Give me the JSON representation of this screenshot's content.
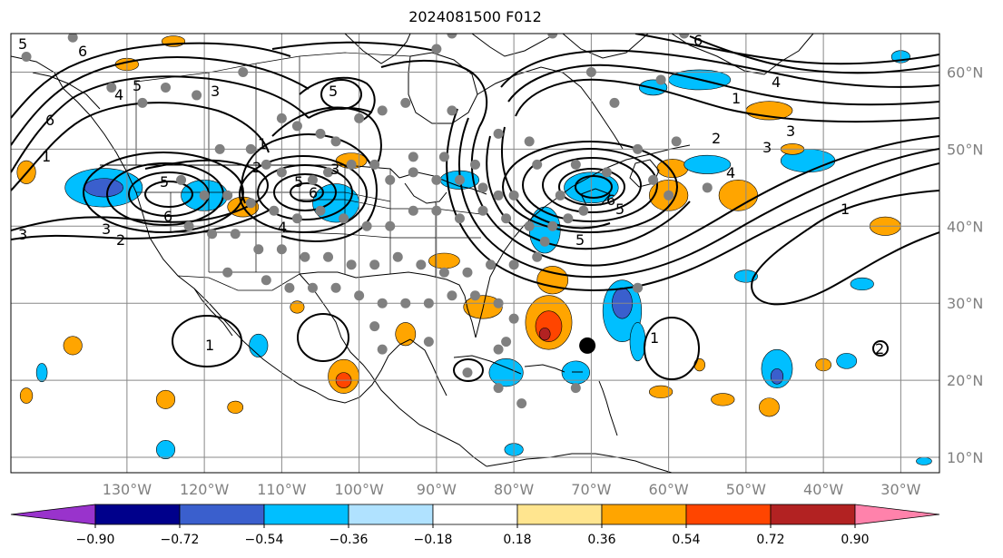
{
  "title": "2024081500 F012",
  "map": {
    "lon_range": [
      -145,
      -25
    ],
    "lat_range": [
      8,
      65
    ],
    "lon_ticks": [
      {
        "lon": -130,
        "label": "130°W"
      },
      {
        "lon": -120,
        "label": "120°W"
      },
      {
        "lon": -110,
        "label": "110°W"
      },
      {
        "lon": -100,
        "label": "100°W"
      },
      {
        "lon": -90,
        "label": "90°W"
      },
      {
        "lon": -80,
        "label": "80°W"
      },
      {
        "lon": -70,
        "label": "70°W"
      },
      {
        "lon": -60,
        "label": "60°W"
      },
      {
        "lon": -50,
        "label": "50°W"
      },
      {
        "lon": -40,
        "label": "40°W"
      },
      {
        "lon": -30,
        "label": "30°W"
      }
    ],
    "lat_ticks": [
      {
        "lat": 60,
        "label": "60°N"
      },
      {
        "lat": 50,
        "label": "50°N"
      },
      {
        "lat": 40,
        "label": "40°N"
      },
      {
        "lat": 30,
        "label": "30°N"
      },
      {
        "lat": 20,
        "label": "20°N"
      },
      {
        "lat": 10,
        "label": "10°N"
      }
    ],
    "storm_marker": {
      "lon": -70.5,
      "lat": 24.5,
      "color": "#000000"
    },
    "station_color": "#808080",
    "stations": [
      [
        -143,
        62
      ],
      [
        -137,
        64.5
      ],
      [
        -132,
        58
      ],
      [
        -128,
        56
      ],
      [
        -125,
        58
      ],
      [
        -121,
        57
      ],
      [
        -115,
        60
      ],
      [
        -110,
        54
      ],
      [
        -108,
        53
      ],
      [
        -105,
        52
      ],
      [
        -103,
        51
      ],
      [
        -100,
        54
      ],
      [
        -97,
        55
      ],
      [
        -94,
        56
      ],
      [
        -93,
        49
      ],
      [
        -89,
        49
      ],
      [
        -85,
        48
      ],
      [
        -118,
        50
      ],
      [
        -114,
        50
      ],
      [
        -112,
        48
      ],
      [
        -110,
        47
      ],
      [
        -106,
        46
      ],
      [
        -104,
        47
      ],
      [
        -101,
        48
      ],
      [
        -98,
        48
      ],
      [
        -96,
        46
      ],
      [
        -93,
        47
      ],
      [
        -90,
        46
      ],
      [
        -87,
        46
      ],
      [
        -84,
        45
      ],
      [
        -82,
        44
      ],
      [
        -80,
        44
      ],
      [
        -123,
        46
      ],
      [
        -120,
        44
      ],
      [
        -117,
        44
      ],
      [
        -114,
        43
      ],
      [
        -111,
        42
      ],
      [
        -108,
        41
      ],
      [
        -105,
        42
      ],
      [
        -102,
        41
      ],
      [
        -99,
        40
      ],
      [
        -96,
        40
      ],
      [
        -93,
        42
      ],
      [
        -90,
        42
      ],
      [
        -87,
        41
      ],
      [
        -84,
        42
      ],
      [
        -81,
        41
      ],
      [
        -78,
        40
      ],
      [
        -75,
        40
      ],
      [
        -122,
        40
      ],
      [
        -119,
        39
      ],
      [
        -116,
        39
      ],
      [
        -113,
        37
      ],
      [
        -110,
        37
      ],
      [
        -107,
        36
      ],
      [
        -104,
        36
      ],
      [
        -101,
        35
      ],
      [
        -98,
        35
      ],
      [
        -95,
        36
      ],
      [
        -92,
        35
      ],
      [
        -89,
        34
      ],
      [
        -86,
        34
      ],
      [
        -83,
        35
      ],
      [
        -80,
        35
      ],
      [
        -77,
        36
      ],
      [
        -76,
        38
      ],
      [
        -73,
        41
      ],
      [
        -71,
        42
      ],
      [
        -74,
        44
      ],
      [
        -117,
        34
      ],
      [
        -112,
        33
      ],
      [
        -109,
        32
      ],
      [
        -106,
        32
      ],
      [
        -103,
        32
      ],
      [
        -100,
        31
      ],
      [
        -97,
        30
      ],
      [
        -94,
        30
      ],
      [
        -91,
        30
      ],
      [
        -88,
        31
      ],
      [
        -85,
        31
      ],
      [
        -82,
        30
      ],
      [
        -80,
        28
      ],
      [
        -81,
        25
      ],
      [
        -82,
        24
      ],
      [
        -98,
        27
      ],
      [
        -97,
        24
      ],
      [
        -91,
        25
      ],
      [
        -86,
        21
      ],
      [
        -82,
        19
      ],
      [
        -79,
        17
      ],
      [
        -72,
        19
      ],
      [
        -64,
        32
      ],
      [
        -60,
        44
      ],
      [
        -64,
        50
      ],
      [
        -59,
        51
      ],
      [
        -61,
        59
      ],
      [
        -70,
        60
      ],
      [
        -67,
        56
      ],
      [
        -72,
        48
      ],
      [
        -68,
        47
      ],
      [
        -62,
        46
      ],
      [
        -55,
        45
      ],
      [
        -88,
        55
      ],
      [
        -82,
        52
      ],
      [
        -78,
        51
      ],
      [
        -77,
        48
      ],
      [
        -90,
        63
      ],
      [
        -88,
        65
      ],
      [
        -75,
        65
      ],
      [
        -58,
        65
      ]
    ],
    "contour_levels": [
      "1",
      "2",
      "3",
      "4",
      "5",
      "6"
    ],
    "shading": [
      {
        "lon": -133,
        "lat": 45,
        "rx": 5,
        "ry": 2.5,
        "value": -0.45
      },
      {
        "lon": -133,
        "lat": 45,
        "rx": 2.5,
        "ry": 1.2,
        "value": -0.6
      },
      {
        "lon": -120,
        "lat": 44,
        "rx": 3,
        "ry": 2,
        "value": -0.45
      },
      {
        "lon": -115,
        "lat": 42.5,
        "rx": 2,
        "ry": 1.3,
        "value": 0.45
      },
      {
        "lon": -103,
        "lat": 43,
        "rx": 3,
        "ry": 2.5,
        "value": -0.45
      },
      {
        "lon": -101,
        "lat": 48.5,
        "rx": 2,
        "ry": 1,
        "value": 0.45
      },
      {
        "lon": -87,
        "lat": 46,
        "rx": 2.5,
        "ry": 1.2,
        "value": -0.45
      },
      {
        "lon": -89,
        "lat": 35.5,
        "rx": 2,
        "ry": 1,
        "value": 0.45
      },
      {
        "lon": -76,
        "lat": 39.5,
        "rx": 2,
        "ry": 3,
        "value": -0.45
      },
      {
        "lon": -70,
        "lat": 45,
        "rx": 3.5,
        "ry": 2,
        "value": -0.45
      },
      {
        "lon": -60,
        "lat": 44,
        "rx": 2.5,
        "ry": 2,
        "value": 0.45
      },
      {
        "lon": -59.5,
        "lat": 47.5,
        "rx": 2,
        "ry": 1.2,
        "value": 0.45
      },
      {
        "lon": -51,
        "lat": 44,
        "rx": 2.5,
        "ry": 2,
        "value": 0.45
      },
      {
        "lon": -55,
        "lat": 48,
        "rx": 3,
        "ry": 1.2,
        "value": -0.45
      },
      {
        "lon": -42,
        "lat": 48.5,
        "rx": 3.5,
        "ry": 1.5,
        "value": -0.45
      },
      {
        "lon": -44,
        "lat": 50,
        "rx": 1.5,
        "ry": 0.7,
        "value": 0.45
      },
      {
        "lon": -47,
        "lat": 55,
        "rx": 3,
        "ry": 1.2,
        "value": 0.45
      },
      {
        "lon": -56,
        "lat": 59,
        "rx": 4,
        "ry": 1.3,
        "value": -0.45
      },
      {
        "lon": -62,
        "lat": 58,
        "rx": 1.8,
        "ry": 1,
        "value": -0.45
      },
      {
        "lon": -30,
        "lat": 62,
        "rx": 1.2,
        "ry": 0.8,
        "value": -0.45
      },
      {
        "lon": -32,
        "lat": 40,
        "rx": 2,
        "ry": 1.2,
        "value": 0.45
      },
      {
        "lon": -35,
        "lat": 32.5,
        "rx": 1.5,
        "ry": 0.8,
        "value": -0.45
      },
      {
        "lon": -50,
        "lat": 33.5,
        "rx": 1.5,
        "ry": 0.8,
        "value": -0.45
      },
      {
        "lon": -75,
        "lat": 33,
        "rx": 2,
        "ry": 1.8,
        "value": 0.45
      },
      {
        "lon": -75.5,
        "lat": 27.5,
        "rx": 3,
        "ry": 3.5,
        "value": 0.45
      },
      {
        "lon": -75.5,
        "lat": 27,
        "rx": 1.7,
        "ry": 2,
        "value": 0.63
      },
      {
        "lon": -76,
        "lat": 26,
        "rx": 0.7,
        "ry": 0.8,
        "value": 0.81
      },
      {
        "lon": -66,
        "lat": 29,
        "rx": 2.5,
        "ry": 4,
        "value": -0.45
      },
      {
        "lon": -66,
        "lat": 30,
        "rx": 1.3,
        "ry": 2,
        "value": -0.63
      },
      {
        "lon": -64,
        "lat": 25,
        "rx": 1,
        "ry": 2.5,
        "value": -0.45
      },
      {
        "lon": -72,
        "lat": 21,
        "rx": 1.8,
        "ry": 1.5,
        "value": -0.45
      },
      {
        "lon": -81,
        "lat": 21,
        "rx": 2.2,
        "ry": 1.8,
        "value": -0.45
      },
      {
        "lon": -84,
        "lat": 29.5,
        "rx": 2.5,
        "ry": 1.5,
        "value": 0.45
      },
      {
        "lon": -94,
        "lat": 26,
        "rx": 1.3,
        "ry": 1.5,
        "value": 0.45
      },
      {
        "lon": -102,
        "lat": 20.5,
        "rx": 2,
        "ry": 2.2,
        "value": 0.45
      },
      {
        "lon": -102,
        "lat": 20,
        "rx": 1,
        "ry": 1,
        "value": 0.63
      },
      {
        "lon": -108,
        "lat": 29.5,
        "rx": 0.9,
        "ry": 0.8,
        "value": 0.45
      },
      {
        "lon": -113,
        "lat": 24.5,
        "rx": 1.2,
        "ry": 1.5,
        "value": -0.45
      },
      {
        "lon": -137,
        "lat": 24.5,
        "rx": 1.2,
        "ry": 1.2,
        "value": 0.45
      },
      {
        "lon": -141,
        "lat": 21,
        "rx": 0.7,
        "ry": 1.2,
        "value": -0.45
      },
      {
        "lon": -143,
        "lat": 18,
        "rx": 0.8,
        "ry": 1,
        "value": 0.45
      },
      {
        "lon": -125,
        "lat": 17.5,
        "rx": 1.2,
        "ry": 1.2,
        "value": 0.45
      },
      {
        "lon": -116,
        "lat": 16.5,
        "rx": 1,
        "ry": 0.8,
        "value": 0.45
      },
      {
        "lon": -125,
        "lat": 11,
        "rx": 1.2,
        "ry": 1.2,
        "value": -0.45
      },
      {
        "lon": -80,
        "lat": 11,
        "rx": 1.2,
        "ry": 0.8,
        "value": -0.45
      },
      {
        "lon": -61,
        "lat": 18.5,
        "rx": 1.5,
        "ry": 0.8,
        "value": 0.45
      },
      {
        "lon": -46,
        "lat": 21.5,
        "rx": 2,
        "ry": 2.5,
        "value": -0.45
      },
      {
        "lon": -46,
        "lat": 20.5,
        "rx": 0.8,
        "ry": 1,
        "value": -0.63
      },
      {
        "lon": -47,
        "lat": 16.5,
        "rx": 1.3,
        "ry": 1.2,
        "value": 0.45
      },
      {
        "lon": -37,
        "lat": 22.5,
        "rx": 1.3,
        "ry": 1,
        "value": -0.45
      },
      {
        "lon": -40,
        "lat": 22,
        "rx": 1,
        "ry": 0.8,
        "value": 0.45
      },
      {
        "lon": -53,
        "lat": 17.5,
        "rx": 1.5,
        "ry": 0.8,
        "value": 0.45
      },
      {
        "lon": -56,
        "lat": 22,
        "rx": 0.7,
        "ry": 0.8,
        "value": 0.45
      },
      {
        "lon": -27,
        "lat": 9.5,
        "rx": 1,
        "ry": 0.5,
        "value": -0.45
      },
      {
        "lon": -130,
        "lat": 61,
        "rx": 1.5,
        "ry": 0.8,
        "value": 0.45
      },
      {
        "lon": -124,
        "lat": 64,
        "rx": 1.5,
        "ry": 0.7,
        "value": 0.45
      },
      {
        "lon": -143,
        "lat": 47,
        "rx": 1.2,
        "ry": 1.5,
        "value": 0.45
      }
    ]
  },
  "colorbar": {
    "colors": [
      "#9933cc",
      "#00008b",
      "#3a5fcd",
      "#00bfff",
      "#b0e2ff",
      "#ffffff",
      "#ffe58f",
      "#ffa500",
      "#ff4500",
      "#b22222",
      "#ff82ab"
    ],
    "bounds": [
      -0.9,
      -0.72,
      -0.54,
      -0.36,
      -0.18,
      0.18,
      0.36,
      0.54,
      0.72,
      0.9
    ],
    "tick_labels": [
      "−0.90",
      "−0.72",
      "−0.54",
      "−0.36",
      "−0.18",
      "0.18",
      "0.36",
      "0.54",
      "0.72",
      "0.90"
    ]
  }
}
